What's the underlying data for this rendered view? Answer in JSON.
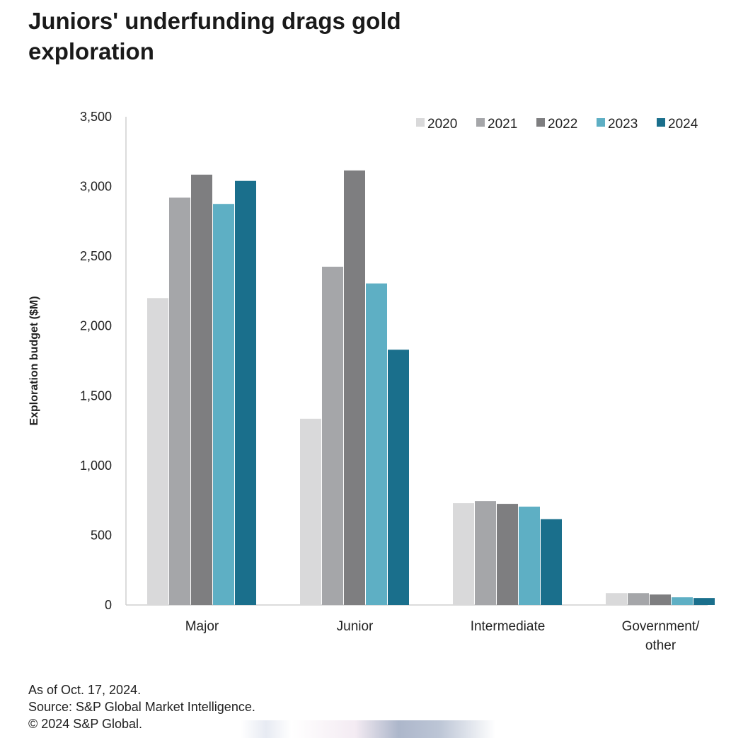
{
  "title": "Juniors' underfunding drags gold exploration",
  "footer": {
    "line1": "As of Oct. 17, 2024.",
    "line2": "Source: S&P Global Market Intelligence.",
    "line3": "© 2024 S&P Global."
  },
  "chart_data": {
    "type": "bar",
    "title": "Juniors' underfunding drags gold exploration",
    "xlabel": "",
    "ylabel": "Exploration budget ($M)",
    "ylim": [
      0,
      3500
    ],
    "yticks": [
      0,
      500,
      1000,
      1500,
      2000,
      2500,
      3000,
      3500
    ],
    "ytick_labels": [
      "0",
      "500",
      "1,000",
      "1,500",
      "2,000",
      "2,500",
      "3,000",
      "3,500"
    ],
    "categories": [
      "Major",
      "Junior",
      "Intermediate",
      "Government/ other"
    ],
    "legend_position": "top-right",
    "grid": false,
    "series": [
      {
        "name": "2020",
        "color": "#d9d9da",
        "values": [
          2200,
          1335,
          730,
          85
        ]
      },
      {
        "name": "2021",
        "color": "#a5a6a9",
        "values": [
          2920,
          2425,
          745,
          85
        ]
      },
      {
        "name": "2022",
        "color": "#7e7e80",
        "values": [
          3085,
          3115,
          725,
          75
        ]
      },
      {
        "name": "2023",
        "color": "#5eafc4",
        "values": [
          2875,
          2305,
          705,
          55
        ]
      },
      {
        "name": "2024",
        "color": "#1a6f8c",
        "values": [
          3040,
          1830,
          615,
          50
        ]
      }
    ]
  }
}
